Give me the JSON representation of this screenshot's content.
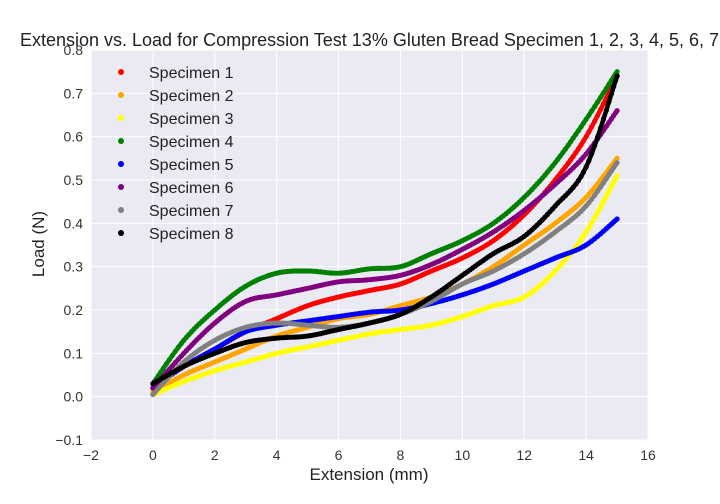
{
  "chart_data": {
    "type": "scatter",
    "title": "Extension vs. Load for Compression Test 13% Gluten Bread Specimen 1, 2, 3, 4, 5, 6, 7,",
    "xlabel": "Extension (mm)",
    "ylabel": "Load (N)",
    "xlim": [
      -2,
      16
    ],
    "ylim": [
      -0.1,
      0.8
    ],
    "xticks": [
      "−2",
      "0",
      "2",
      "4",
      "6",
      "8",
      "10",
      "12",
      "14",
      "16"
    ],
    "yticks": [
      "−0.1",
      "0.0",
      "0.1",
      "0.2",
      "0.3",
      "0.4",
      "0.5",
      "0.6",
      "0.7",
      "0.8"
    ],
    "grid": true,
    "background": "#eaeaf2",
    "legend_position": "top-left",
    "series": [
      {
        "name": "Specimen 1",
        "color": "#ff0000",
        "x": [
          0,
          1,
          2,
          3,
          4,
          5,
          6,
          7,
          8,
          9,
          10,
          11,
          12,
          13,
          14,
          15
        ],
        "y": [
          0.02,
          0.07,
          0.11,
          0.15,
          0.18,
          0.21,
          0.23,
          0.245,
          0.26,
          0.29,
          0.32,
          0.36,
          0.42,
          0.5,
          0.6,
          0.74
        ]
      },
      {
        "name": "Specimen 2",
        "color": "#ffa500",
        "x": [
          0,
          1,
          2,
          3,
          4,
          5,
          6,
          7,
          8,
          9,
          10,
          11,
          12,
          13,
          14,
          15
        ],
        "y": [
          0.01,
          0.05,
          0.08,
          0.11,
          0.14,
          0.16,
          0.18,
          0.19,
          0.21,
          0.23,
          0.26,
          0.3,
          0.35,
          0.4,
          0.46,
          0.55
        ]
      },
      {
        "name": "Specimen 3",
        "color": "#ffff00",
        "x": [
          0,
          1,
          2,
          3,
          4,
          5,
          6,
          7,
          8,
          9,
          10,
          11,
          12,
          13,
          14,
          15
        ],
        "y": [
          0.005,
          0.035,
          0.06,
          0.08,
          0.1,
          0.115,
          0.13,
          0.145,
          0.155,
          0.165,
          0.185,
          0.21,
          0.23,
          0.29,
          0.38,
          0.51
        ]
      },
      {
        "name": "Specimen 4",
        "color": "#008000",
        "x": [
          0,
          1,
          2,
          3,
          4,
          5,
          6,
          7,
          8,
          9,
          10,
          11,
          12,
          13,
          14,
          15
        ],
        "y": [
          0.03,
          0.13,
          0.2,
          0.255,
          0.285,
          0.29,
          0.285,
          0.295,
          0.3,
          0.33,
          0.36,
          0.4,
          0.46,
          0.54,
          0.64,
          0.75
        ]
      },
      {
        "name": "Specimen 5",
        "color": "#0000ff",
        "x": [
          0,
          1,
          2,
          3,
          4,
          5,
          6,
          7,
          8,
          9,
          10,
          11,
          12,
          13,
          14,
          15
        ],
        "y": [
          0.02,
          0.07,
          0.11,
          0.15,
          0.165,
          0.175,
          0.185,
          0.195,
          0.2,
          0.215,
          0.235,
          0.26,
          0.29,
          0.32,
          0.35,
          0.41
        ]
      },
      {
        "name": "Specimen 6",
        "color": "#800080",
        "x": [
          0,
          1,
          2,
          3,
          4,
          5,
          6,
          7,
          8,
          9,
          10,
          11,
          12,
          13,
          14,
          15
        ],
        "y": [
          0.02,
          0.1,
          0.17,
          0.22,
          0.235,
          0.25,
          0.265,
          0.27,
          0.28,
          0.305,
          0.34,
          0.38,
          0.43,
          0.49,
          0.56,
          0.66
        ]
      },
      {
        "name": "Specimen 7",
        "color": "#808080",
        "x": [
          0,
          1,
          2,
          3,
          4,
          5,
          6,
          7,
          8,
          9,
          10,
          11,
          12,
          13,
          14,
          15
        ],
        "y": [
          0.005,
          0.08,
          0.13,
          0.16,
          0.17,
          0.165,
          0.16,
          0.17,
          0.19,
          0.22,
          0.26,
          0.29,
          0.33,
          0.38,
          0.44,
          0.54
        ]
      },
      {
        "name": "Specimen 8",
        "color": "#000000",
        "x": [
          0,
          1,
          2,
          3,
          4,
          5,
          6,
          7,
          8,
          9,
          10,
          11,
          12,
          13,
          14,
          15
        ],
        "y": [
          0.03,
          0.07,
          0.1,
          0.125,
          0.135,
          0.14,
          0.155,
          0.17,
          0.19,
          0.23,
          0.28,
          0.33,
          0.37,
          0.44,
          0.53,
          0.74
        ]
      }
    ]
  }
}
